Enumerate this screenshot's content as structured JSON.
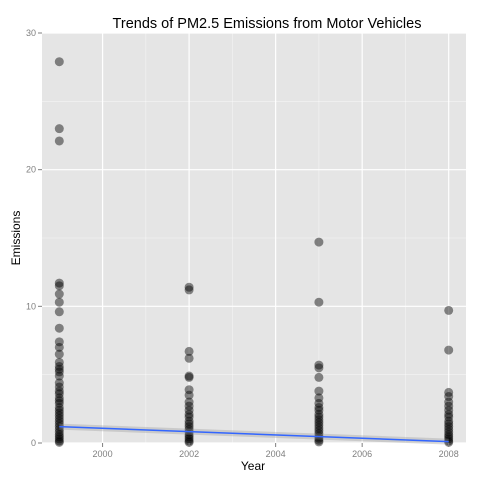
{
  "chart_data": {
    "type": "scatter",
    "title": "Trends of PM2.5 Emissions from Motor Vehicles",
    "xlabel": "Year",
    "ylabel": "Emissions",
    "xlim": [
      1998.6,
      2008.4
    ],
    "ylim": [
      0,
      30
    ],
    "x_ticks": [
      2000,
      2002,
      2004,
      2006,
      2008
    ],
    "y_ticks": [
      0,
      10,
      20,
      30
    ],
    "grid": true,
    "legend": "none",
    "background": "#e5e5e5",
    "grid_color": "#ffffff",
    "point_color": "#000000",
    "point_opacity": 0.45,
    "trend_color": "#3366ff",
    "points": [
      {
        "year": 1999,
        "values": [
          27.9,
          23.0,
          22.1,
          11.7,
          11.5,
          10.9,
          10.3,
          9.6,
          8.4,
          7.4,
          7.0,
          6.5,
          5.9,
          5.6,
          5.4,
          5.2,
          4.9,
          4.4,
          4.1,
          3.8,
          3.6,
          3.3,
          3.1,
          2.9,
          2.6,
          2.4,
          2.2,
          2.0,
          1.8,
          1.6,
          1.4,
          1.2,
          1.0,
          0.8,
          0.6,
          0.45,
          0.3,
          0.15,
          0.05
        ]
      },
      {
        "year": 2002,
        "values": [
          11.4,
          11.2,
          6.7,
          6.2,
          4.9,
          4.8,
          3.9,
          3.5,
          3.0,
          2.7,
          2.4,
          2.1,
          1.9,
          1.6,
          1.4,
          1.2,
          1.0,
          0.8,
          0.6,
          0.45,
          0.3,
          0.15,
          0.05
        ]
      },
      {
        "year": 2005,
        "values": [
          14.7,
          10.3,
          5.7,
          5.5,
          4.8,
          3.8,
          3.3,
          2.9,
          2.6,
          2.4,
          2.1,
          1.9,
          1.7,
          1.5,
          1.3,
          1.1,
          0.9,
          0.7,
          0.5,
          0.35,
          0.2,
          0.08
        ]
      },
      {
        "year": 2008,
        "values": [
          9.7,
          6.8,
          3.7,
          3.4,
          3.0,
          2.7,
          2.4,
          2.1,
          1.9,
          1.6,
          1.4,
          1.2,
          1.0,
          0.8,
          0.6,
          0.45,
          0.3,
          0.15,
          0.05
        ]
      }
    ],
    "trend_line": {
      "x": [
        1999,
        2008
      ],
      "y": [
        1.2,
        0.1
      ]
    }
  }
}
